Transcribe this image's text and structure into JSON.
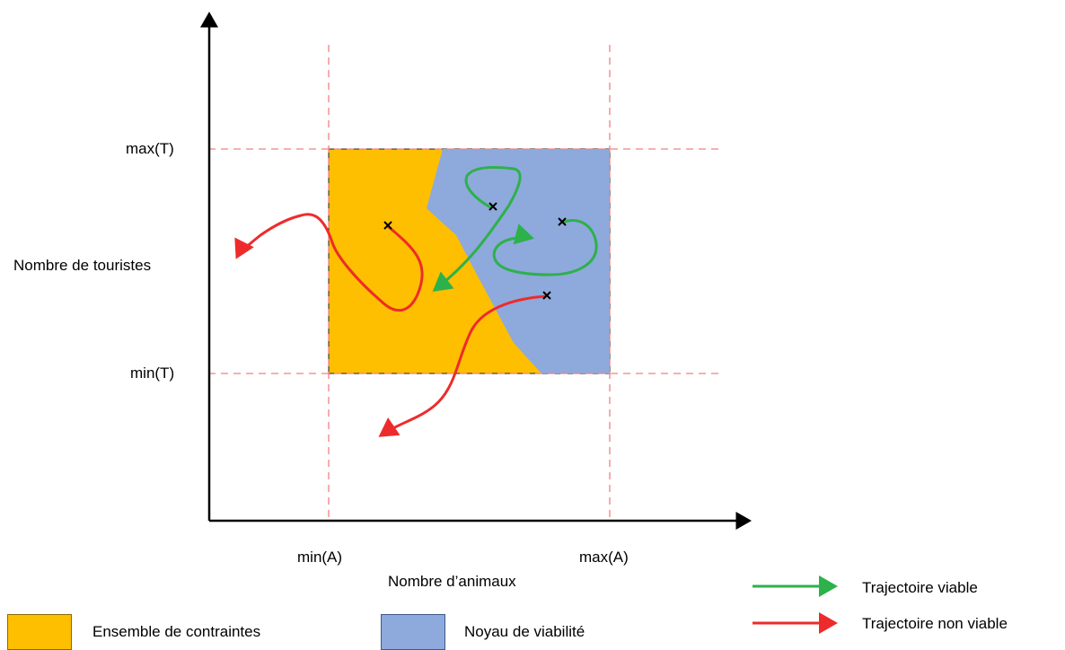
{
  "axes": {
    "y_label": "Nombre de touristes",
    "x_label": "Nombre d’animaux",
    "y_ticks": {
      "max": "max(T)",
      "min": "min(T)"
    },
    "x_ticks": {
      "min": "min(A)",
      "max": "max(A)"
    }
  },
  "regions": {
    "constraint_set": {
      "label": "Ensemble de contraintes",
      "color": "#FDBF00"
    },
    "viability_kernel": {
      "label": "Noyau de viabilité",
      "color": "#8EA9DB"
    }
  },
  "legend": {
    "viable": {
      "label": "Trajectoire viable",
      "color": "#2DB14B"
    },
    "non_viable": {
      "label": "Trajectoire non viable",
      "color": "#EE2B2B"
    }
  },
  "colors": {
    "guide_lines": "#F08080",
    "axis": "#000000",
    "marker": "#000000"
  },
  "marker_symbol": "x"
}
